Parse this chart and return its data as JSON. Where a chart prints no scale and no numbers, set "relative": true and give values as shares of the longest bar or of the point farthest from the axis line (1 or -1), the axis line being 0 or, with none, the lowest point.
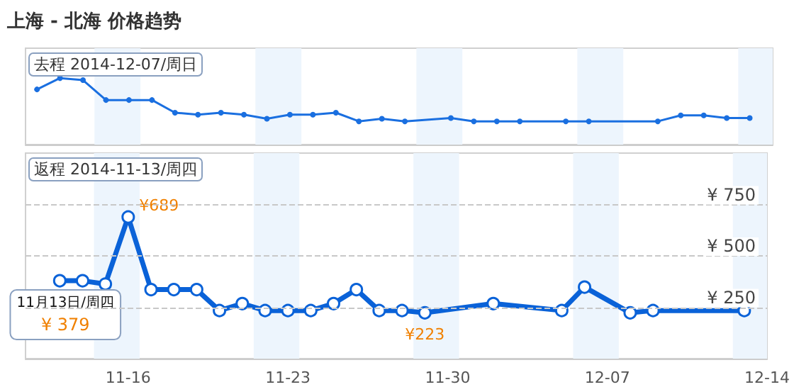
{
  "chart_data": [
    {
      "type": "line",
      "title": "上海 - 北海 价格趋势",
      "subtitle": "去程 2014-12-07/周日",
      "relative": true,
      "tick_labels": false,
      "marker": "circle",
      "color": "#1a6fe0",
      "x": [
        "2014-11-12",
        "2014-11-13",
        "2014-11-14",
        "2014-11-15",
        "2014-11-16",
        "2014-11-17",
        "2014-11-18",
        "2014-11-19",
        "2014-11-20",
        "2014-11-21",
        "2014-11-22",
        "2014-11-23",
        "2014-11-24",
        "2014-11-25",
        "2014-11-26",
        "2014-11-27",
        "2014-11-28",
        "2014-11-30",
        "2014-12-01",
        "2014-12-02",
        "2014-12-03",
        "2014-12-05",
        "2014-12-06",
        "2014-12-09",
        "2014-12-10",
        "2014-12-11",
        "2014-12-12",
        "2014-12-13"
      ],
      "values": [
        0.83,
        1,
        0.97,
        0.67,
        0.67,
        0.67,
        0.48,
        0.45,
        0.48,
        0.45,
        0.39,
        0.45,
        0.45,
        0.48,
        0.35,
        0.39,
        0.35,
        0.4,
        0.35,
        0.35,
        0.35,
        0.35,
        0.35,
        0.35,
        0.44,
        0.44,
        0.4,
        0.4
      ],
      "xlim": [
        "2014-11-11T12:00",
        "2014-12-14T00:00"
      ],
      "bands": [
        {
          "axis": "x",
          "from": "2014-11-14T12:00",
          "to": "2014-11-16T12:00",
          "color": "#edf5fd"
        },
        {
          "axis": "x",
          "from": "2014-11-21T12:00",
          "to": "2014-11-23T12:00",
          "color": "#edf5fd"
        },
        {
          "axis": "x",
          "from": "2014-11-28T12:00",
          "to": "2014-11-30T12:00",
          "color": "#edf5fd"
        },
        {
          "axis": "x",
          "from": "2014-12-05T12:00",
          "to": "2014-12-07T12:00",
          "color": "#edf5fd"
        },
        {
          "axis": "x",
          "from": "2014-12-12T12:00",
          "to": "2014-12-14T00:00",
          "color": "#edf5fd"
        }
      ]
    },
    {
      "type": "line",
      "title": "返程 2014-11-13/周四",
      "marker": "circle",
      "color": "#0a62d8",
      "grid": "y",
      "x": [
        "2014-11-13",
        "2014-11-14",
        "2014-11-15",
        "2014-11-16",
        "2014-11-17",
        "2014-11-18",
        "2014-11-19",
        "2014-11-20",
        "2014-11-21",
        "2014-11-22",
        "2014-11-23",
        "2014-11-24",
        "2014-11-25",
        "2014-11-26",
        "2014-11-27",
        "2014-11-28",
        "2014-11-29",
        "2014-12-02",
        "2014-12-05",
        "2014-12-06",
        "2014-12-08",
        "2014-12-09",
        "2014-12-13"
      ],
      "values": [
        379,
        379,
        363,
        689,
        336,
        336,
        336,
        234,
        268,
        234,
        234,
        234,
        268,
        336,
        234,
        234,
        223,
        268,
        234,
        348,
        223,
        234,
        234
      ],
      "value_labels": [
        "¥ 379",
        null,
        null,
        "¥689",
        null,
        null,
        null,
        null,
        null,
        null,
        null,
        null,
        null,
        null,
        null,
        null,
        "¥223",
        null,
        null,
        null,
        null,
        null,
        null
      ],
      "annotations": [
        {
          "text": "11月13日/周四",
          "x": "2014-11-13",
          "y": 379
        }
      ],
      "xlim": [
        "2014-11-11T12:00",
        "2014-12-14T00:00"
      ],
      "xticks": [
        {
          "value": "2014-11-16",
          "label": "11-16"
        },
        {
          "value": "2014-11-23",
          "label": "11-23"
        },
        {
          "value": "2014-11-30",
          "label": "11-30"
        },
        {
          "value": "2014-12-07",
          "label": "12-07"
        },
        {
          "value": "2014-12-14",
          "label": "12-14"
        }
      ],
      "ylim": [
        0,
        1000
      ],
      "yticks": [
        {
          "value": 250,
          "label": "¥ 250"
        },
        {
          "value": 500,
          "label": "¥ 500"
        },
        {
          "value": 750,
          "label": "¥ 750"
        }
      ],
      "bands": [
        {
          "axis": "x",
          "from": "2014-11-14T12:00",
          "to": "2014-11-16T12:00",
          "color": "#edf5fd"
        },
        {
          "axis": "x",
          "from": "2014-11-21T12:00",
          "to": "2014-11-23T12:00",
          "color": "#edf5fd"
        },
        {
          "axis": "x",
          "from": "2014-11-28T12:00",
          "to": "2014-11-30T12:00",
          "color": "#edf5fd"
        },
        {
          "axis": "x",
          "from": "2014-12-05T12:00",
          "to": "2014-12-07T12:00",
          "color": "#edf5fd"
        },
        {
          "axis": "x",
          "from": "2014-12-12T12:00",
          "to": "2014-12-14T00:00",
          "color": "#edf5fd"
        }
      ]
    }
  ]
}
